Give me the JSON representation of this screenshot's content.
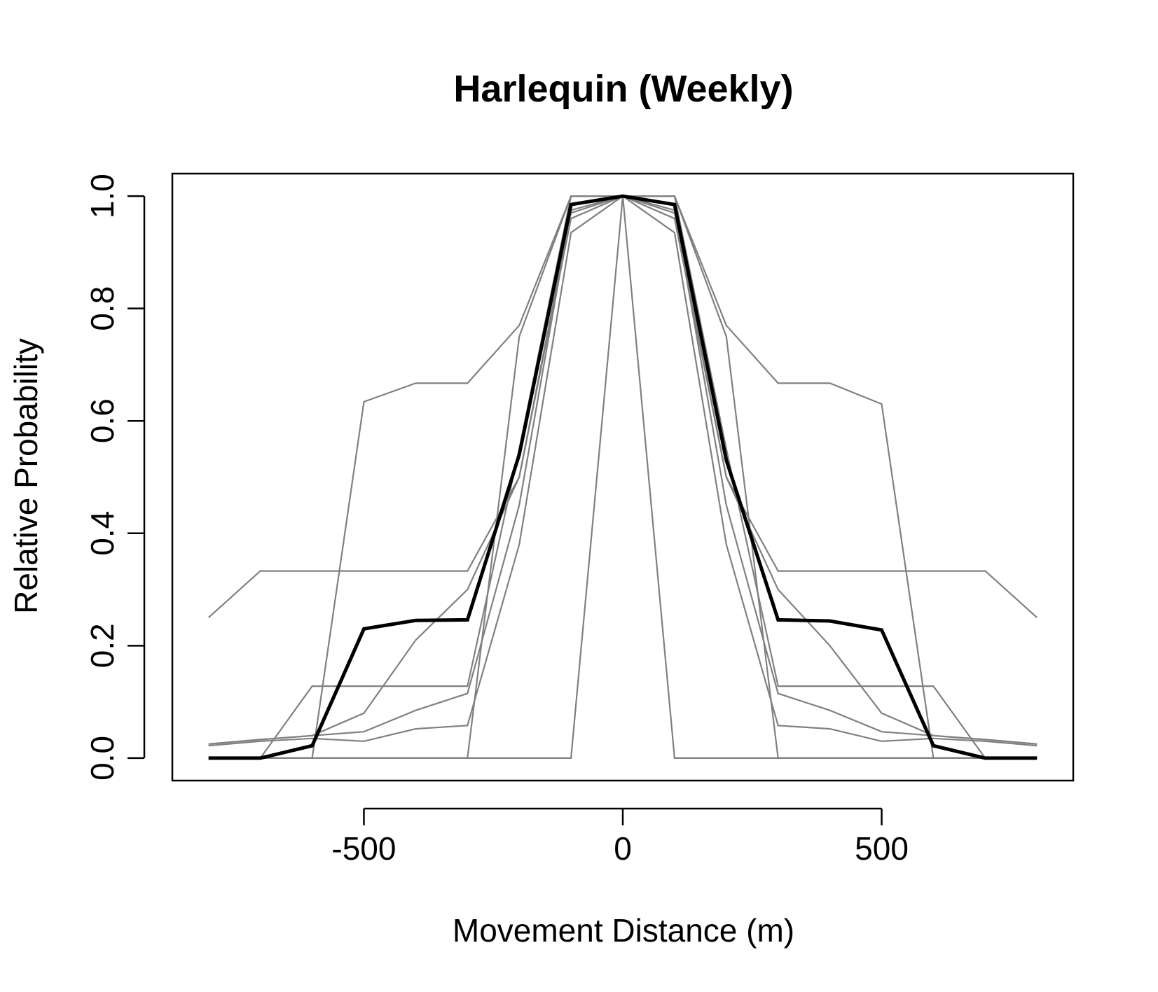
{
  "chart_data": {
    "type": "line",
    "title": "Harlequin (Weekly)",
    "xlabel": "Movement Distance (m)",
    "ylabel": "Relative Probability",
    "xlim": [
      -870,
      870
    ],
    "ylim": [
      -0.04,
      1.04
    ],
    "x_ticks": [
      -500,
      0,
      500
    ],
    "x_tick_labels": [
      "-500",
      "0",
      "500"
    ],
    "y_ticks": [
      0.0,
      0.2,
      0.4,
      0.6,
      0.8,
      1.0
    ],
    "y_tick_labels": [
      "0.0",
      "0.2",
      "0.4",
      "0.6",
      "0.8",
      "1.0"
    ],
    "grid": false,
    "x": [
      -800,
      -700,
      -600,
      -500,
      -400,
      -300,
      -200,
      -100,
      0,
      100,
      200,
      300,
      400,
      500,
      600,
      700,
      800
    ],
    "series": [
      {
        "color": "#808080",
        "values": [
          0.25,
          0.333,
          0.333,
          0.333,
          0.333,
          0.333,
          0.5,
          0.97,
          1.0,
          0.97,
          0.5,
          0.333,
          0.333,
          0.333,
          0.333,
          0.333,
          0.25
        ]
      },
      {
        "color": "#808080",
        "values": [
          0.0,
          0.0,
          0.0,
          0.634,
          0.667,
          0.667,
          0.77,
          1.0,
          1.0,
          1.0,
          0.77,
          0.667,
          0.667,
          0.63,
          0.0,
          0.0,
          0.0
        ]
      },
      {
        "color": "#808080",
        "values": [
          0.0,
          0.0,
          0.128,
          0.128,
          0.128,
          0.128,
          0.55,
          1.0,
          1.0,
          1.0,
          0.55,
          0.128,
          0.128,
          0.128,
          0.128,
          0.0,
          0.0
        ]
      },
      {
        "color": "#808080",
        "values": [
          0.025,
          0.033,
          0.04,
          0.08,
          0.21,
          0.3,
          0.5,
          0.96,
          1.0,
          0.96,
          0.5,
          0.3,
          0.2,
          0.08,
          0.04,
          0.033,
          0.025
        ]
      },
      {
        "color": "#808080",
        "values": [
          0.025,
          0.033,
          0.04,
          0.047,
          0.085,
          0.115,
          0.45,
          0.975,
          1.0,
          0.975,
          0.45,
          0.115,
          0.085,
          0.047,
          0.04,
          0.033,
          0.025
        ]
      },
      {
        "color": "#808080",
        "values": [
          0.022,
          0.03,
          0.035,
          0.03,
          0.052,
          0.058,
          0.38,
          0.935,
          1.0,
          0.935,
          0.38,
          0.058,
          0.052,
          0.03,
          0.035,
          0.03,
          0.022
        ]
      },
      {
        "color": "#808080",
        "values": [
          0.0,
          0.0,
          0.0,
          0.0,
          0.0,
          0.0,
          0.0,
          0.0,
          1.0,
          0.0,
          0.0,
          0.0,
          0.0,
          0.0,
          0.0,
          0.0,
          0.0
        ]
      },
      {
        "color": "#808080",
        "values": [
          0.0,
          0.0,
          0.0,
          0.0,
          0.0,
          0.0,
          0.75,
          1.0,
          1.0,
          1.0,
          0.75,
          0.0,
          0.0,
          0.0,
          0.0,
          0.0,
          0.0
        ]
      },
      {
        "color": "#000000",
        "values": [
          0.0,
          0.0,
          0.022,
          0.23,
          0.245,
          0.246,
          0.54,
          0.985,
          1.0,
          0.985,
          0.53,
          0.246,
          0.244,
          0.228,
          0.022,
          0.0,
          0.0
        ]
      }
    ]
  }
}
